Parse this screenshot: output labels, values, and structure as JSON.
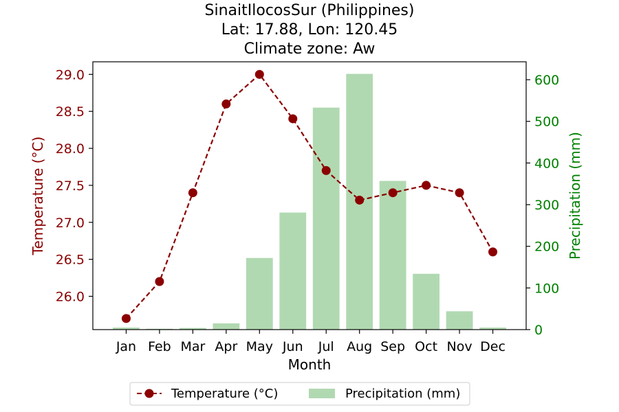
{
  "chart_data": {
    "type": "bar+line",
    "title_lines": [
      "SinaitIlocosSur (Philippines)",
      "Lat: 17.88, Lon: 120.45",
      "Climate zone: Aw"
    ],
    "xlabel": "Month",
    "ylabel_left": "Temperature (°C)",
    "ylabel_right": "Precipitation (mm)",
    "categories": [
      "Jan",
      "Feb",
      "Mar",
      "Apr",
      "May",
      "Jun",
      "Jul",
      "Aug",
      "Sep",
      "Oct",
      "Nov",
      "Dec"
    ],
    "left_axis": {
      "ylim": [
        25.55,
        29.17
      ],
      "ticks": [
        26.0,
        26.5,
        27.0,
        27.5,
        28.0,
        28.5,
        29.0
      ],
      "tick_labels": [
        "26.0",
        "26.5",
        "27.0",
        "27.5",
        "28.0",
        "28.5",
        "29.0"
      ],
      "color": "#8b0000"
    },
    "right_axis": {
      "ylim": [
        0,
        643
      ],
      "ticks": [
        0,
        100,
        200,
        300,
        400,
        500,
        600
      ],
      "tick_labels": [
        "0",
        "100",
        "200",
        "300",
        "400",
        "500",
        "600"
      ],
      "color": "#008000"
    },
    "series": [
      {
        "name": "Temperature (°C)",
        "type": "line",
        "axis": "left",
        "color": "#8b0000",
        "style": "dashed-marker",
        "values": [
          25.7,
          26.2,
          27.4,
          28.6,
          29.0,
          28.4,
          27.7,
          27.3,
          27.4,
          27.5,
          27.4,
          26.6
        ]
      },
      {
        "name": "Precipitation (mm)",
        "type": "bar",
        "axis": "right",
        "color": "#b1d9b1",
        "values": [
          5,
          2,
          4,
          15,
          172,
          281,
          533,
          614,
          357,
          134,
          44,
          5
        ]
      }
    ],
    "legend": {
      "placement": "bottom-center"
    }
  }
}
